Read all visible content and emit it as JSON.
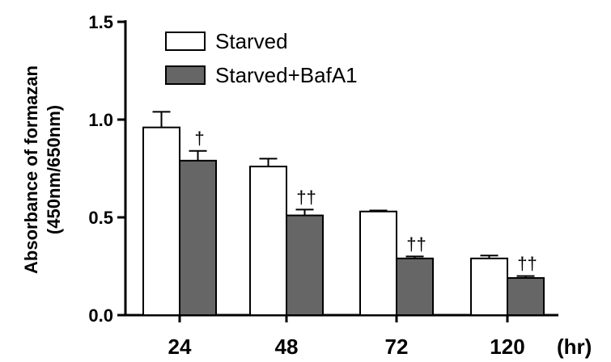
{
  "chart_data": {
    "type": "bar",
    "title": "",
    "xlabel": "",
    "x_unit": "(hr)",
    "ylabel_lines": [
      "Absorbance of formazan",
      "(450nm/650nm)"
    ],
    "ylim": [
      0,
      1.5
    ],
    "yticks": [
      "0.0",
      "0.5",
      "1.0",
      "1.5"
    ],
    "categories": [
      "24",
      "48",
      "72",
      "120"
    ],
    "legend_position": "top-left",
    "series": [
      {
        "name": "Starved",
        "color": "#ffffff",
        "values": [
          0.96,
          0.76,
          0.53,
          0.29
        ],
        "errors": [
          0.08,
          0.04,
          0.005,
          0.015
        ]
      },
      {
        "name": "Starved+BafA1",
        "color": "#666666",
        "values": [
          0.79,
          0.51,
          0.29,
          0.19
        ],
        "errors": [
          0.05,
          0.03,
          0.01,
          0.01
        ]
      }
    ],
    "annotations": [
      "†",
      "††",
      "††",
      "††"
    ]
  }
}
